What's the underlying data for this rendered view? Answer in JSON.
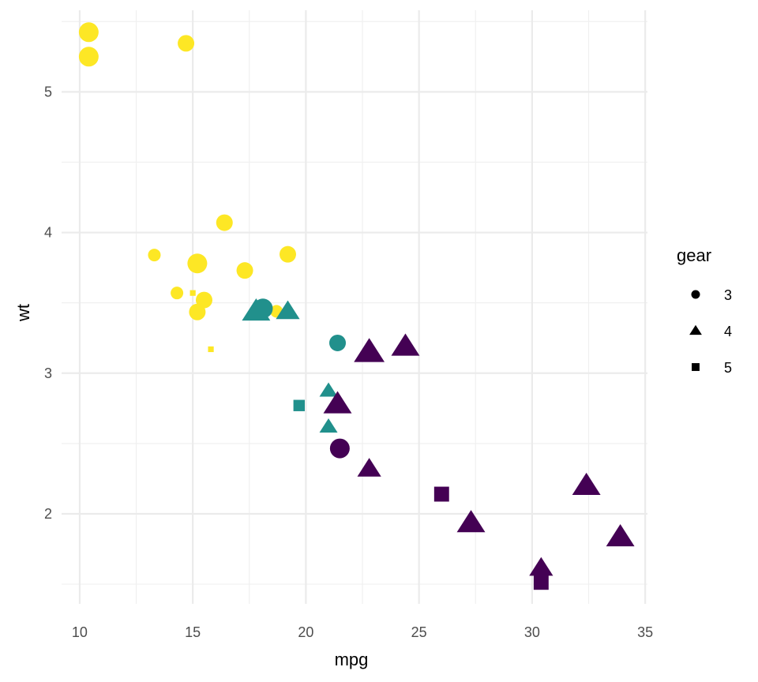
{
  "chart_data": {
    "type": "scatter",
    "xlabel": "mpg",
    "ylabel": "wt",
    "xlim": [
      9.2,
      35.1
    ],
    "ylim": [
      1.36,
      5.58
    ],
    "x_ticks": [
      10,
      15,
      20,
      25,
      30,
      35
    ],
    "y_ticks": [
      2,
      3,
      4,
      5
    ],
    "grid": true,
    "legend": {
      "title": "gear",
      "position": "right",
      "entries": [
        {
          "label": "3",
          "shape": "circle"
        },
        {
          "label": "4",
          "shape": "triangle"
        },
        {
          "label": "5",
          "shape": "square"
        }
      ]
    },
    "colors": {
      "high": "#fde725",
      "mid": "#21908c",
      "low": "#440154"
    },
    "points": [
      {
        "x": 21.0,
        "y": 2.62,
        "gear": "4",
        "color": "mid",
        "size": 3
      },
      {
        "x": 21.0,
        "y": 2.875,
        "gear": "4",
        "color": "mid",
        "size": 3
      },
      {
        "x": 22.8,
        "y": 2.32,
        "gear": "4",
        "color": "low",
        "size": 4
      },
      {
        "x": 21.4,
        "y": 3.215,
        "gear": "3",
        "color": "mid",
        "size": 4
      },
      {
        "x": 18.7,
        "y": 3.44,
        "gear": "3",
        "color": "high",
        "size": 3
      },
      {
        "x": 18.1,
        "y": 3.46,
        "gear": "3",
        "color": "mid",
        "size": 5
      },
      {
        "x": 14.3,
        "y": 3.57,
        "gear": "3",
        "color": "high",
        "size": 3
      },
      {
        "x": 24.4,
        "y": 3.19,
        "gear": "4",
        "color": "low",
        "size": 5
      },
      {
        "x": 22.8,
        "y": 3.15,
        "gear": "4",
        "color": "low",
        "size": 6
      },
      {
        "x": 19.2,
        "y": 3.44,
        "gear": "4",
        "color": "mid",
        "size": 4
      },
      {
        "x": 17.8,
        "y": 3.44,
        "gear": "4",
        "color": "mid",
        "size": 5
      },
      {
        "x": 16.4,
        "y": 4.07,
        "gear": "3",
        "color": "high",
        "size": 4
      },
      {
        "x": 17.3,
        "y": 3.73,
        "gear": "3",
        "color": "high",
        "size": 4
      },
      {
        "x": 15.2,
        "y": 3.78,
        "gear": "3",
        "color": "high",
        "size": 5
      },
      {
        "x": 10.4,
        "y": 5.25,
        "gear": "3",
        "color": "high",
        "size": 5
      },
      {
        "x": 10.4,
        "y": 5.424,
        "gear": "3",
        "color": "high",
        "size": 5
      },
      {
        "x": 14.7,
        "y": 5.345,
        "gear": "3",
        "color": "high",
        "size": 4
      },
      {
        "x": 32.4,
        "y": 2.2,
        "gear": "4",
        "color": "low",
        "size": 5
      },
      {
        "x": 30.4,
        "y": 1.615,
        "gear": "4",
        "color": "low",
        "size": 4
      },
      {
        "x": 33.9,
        "y": 1.835,
        "gear": "4",
        "color": "low",
        "size": 5
      },
      {
        "x": 21.5,
        "y": 2.465,
        "gear": "3",
        "color": "low",
        "size": 5
      },
      {
        "x": 15.5,
        "y": 3.52,
        "gear": "3",
        "color": "high",
        "size": 4
      },
      {
        "x": 15.2,
        "y": 3.435,
        "gear": "3",
        "color": "high",
        "size": 4
      },
      {
        "x": 13.3,
        "y": 3.84,
        "gear": "3",
        "color": "high",
        "size": 3
      },
      {
        "x": 19.2,
        "y": 3.845,
        "gear": "3",
        "color": "high",
        "size": 4
      },
      {
        "x": 27.3,
        "y": 1.935,
        "gear": "4",
        "color": "low",
        "size": 5
      },
      {
        "x": 26.0,
        "y": 2.14,
        "gear": "5",
        "color": "low",
        "size": 4
      },
      {
        "x": 30.4,
        "y": 1.513,
        "gear": "5",
        "color": "low",
        "size": 4
      },
      {
        "x": 15.8,
        "y": 3.17,
        "gear": "5",
        "color": "high",
        "size": 1
      },
      {
        "x": 19.7,
        "y": 2.77,
        "gear": "5",
        "color": "mid",
        "size": 3
      },
      {
        "x": 15.0,
        "y": 3.57,
        "gear": "5",
        "color": "high",
        "size": 1
      },
      {
        "x": 21.4,
        "y": 2.78,
        "gear": "4",
        "color": "low",
        "size": 5
      }
    ]
  }
}
